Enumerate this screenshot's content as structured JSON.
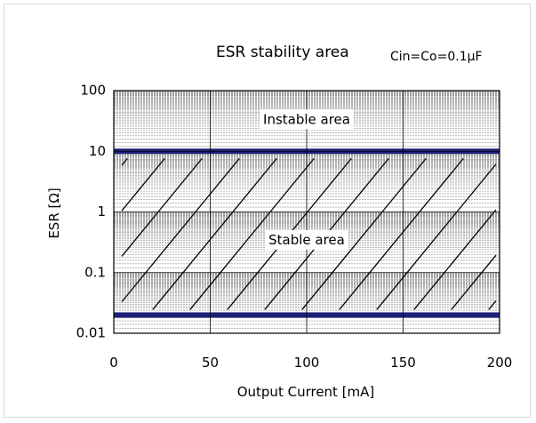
{
  "chart_data": {
    "type": "area",
    "title": "ESR stability area",
    "subtitle": "Cin=Co=0.1µF",
    "xlabel": "Output Current [mA]",
    "ylabel": "ESR [Ω]",
    "xlim": [
      0,
      200
    ],
    "ylim": [
      0.01,
      100
    ],
    "y_scale": "log",
    "grid": true,
    "x_ticks": [
      "0",
      "50",
      "100",
      "150",
      "200"
    ],
    "y_ticks": [
      "100",
      "10",
      "1",
      "0.1",
      "0.01"
    ],
    "boundaries": [
      {
        "y": 10,
        "color": "#1f1f7a"
      },
      {
        "y": 0.02,
        "color": "#1f1f7a"
      }
    ],
    "regions": [
      {
        "label": "Instable area",
        "x": 100,
        "y": 33
      },
      {
        "label": "Stable area",
        "x": 100,
        "y": 0.34
      }
    ],
    "stable_hatching": "diagonal lines between ESR 0.02 and 10"
  }
}
